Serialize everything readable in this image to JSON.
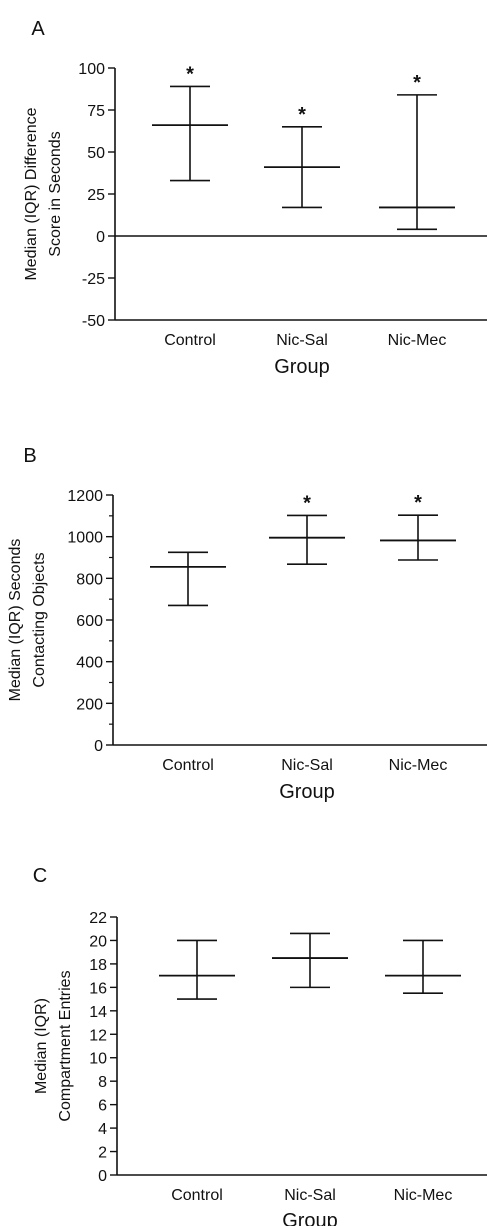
{
  "chart_data": [
    {
      "panel": "A",
      "type": "box",
      "categories": [
        "Control",
        "Nic-Sal",
        "Nic-Mec"
      ],
      "xlabel": "Group",
      "ylabel": [
        "Median (IQR) Difference",
        "Score in Seconds"
      ],
      "ylim": [
        -50,
        100
      ],
      "yticks": [
        -50,
        -25,
        0,
        25,
        50,
        75,
        100
      ],
      "zero_line": true,
      "series": [
        {
          "median": 66,
          "q1": 33,
          "q3": 89,
          "significant": true
        },
        {
          "median": 41,
          "q1": 17,
          "q3": 65,
          "significant": true
        },
        {
          "median": 17,
          "q1": 4,
          "q3": 84,
          "significant": true
        }
      ],
      "marker": "*"
    },
    {
      "panel": "B",
      "type": "box",
      "categories": [
        "Control",
        "Nic-Sal",
        "Nic-Mec"
      ],
      "xlabel": "Group",
      "ylabel": [
        "Median (IQR) Seconds",
        "Contacting Objects"
      ],
      "ylim": [
        0,
        1200
      ],
      "yticks": [
        0,
        200,
        400,
        600,
        800,
        1000,
        1200
      ],
      "minor_step": 100,
      "series": [
        {
          "median": 855,
          "q1": 670,
          "q3": 925,
          "significant": false
        },
        {
          "median": 995,
          "q1": 868,
          "q3": 1102,
          "significant": true
        },
        {
          "median": 982,
          "q1": 888,
          "q3": 1103,
          "significant": true
        }
      ],
      "marker": "*"
    },
    {
      "panel": "C",
      "type": "box",
      "categories": [
        "Control",
        "Nic-Sal",
        "Nic-Mec"
      ],
      "xlabel": "Group",
      "ylabel": [
        "Median (IQR)",
        "Compartment Entries"
      ],
      "ylim": [
        0,
        22
      ],
      "yticks": [
        0,
        2,
        4,
        6,
        8,
        10,
        12,
        14,
        16,
        18,
        20,
        22
      ],
      "series": [
        {
          "median": 17,
          "q1": 15,
          "q3": 20,
          "significant": false
        },
        {
          "median": 18.5,
          "q1": 16,
          "q3": 20.6,
          "significant": false
        },
        {
          "median": 17,
          "q1": 15.5,
          "q3": 20,
          "significant": false
        }
      ],
      "marker": "*"
    }
  ]
}
